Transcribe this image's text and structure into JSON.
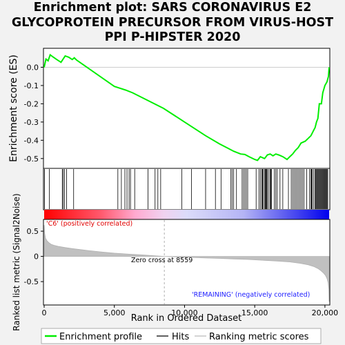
{
  "title_lines": [
    "Enrichment plot: SARS CORONAVIRUS E2",
    "GLYCOPROTEIN PRECURSOR FROM VIRUS-HOST",
    "PPI P-HIPSTER 2020"
  ],
  "chart_data": {
    "type": "line",
    "n_genes": 20300,
    "es_panel": {
      "ylabel": "Enrichment score (ES)",
      "ylim": [
        -0.55,
        0.1
      ],
      "yticks": [
        0.0,
        -0.1,
        -0.2,
        -0.3,
        -0.4,
        -0.5
      ],
      "ytick_labels": [
        "0.0",
        "-0.1",
        "-0.2",
        "-0.3",
        "-0.4",
        "-0.5"
      ],
      "series": [
        {
          "name": "Enrichment profile",
          "color": "#00ee00",
          "x": [
            0,
            130,
            280,
            430,
            600,
            900,
            1200,
            1350,
            1500,
            1750,
            2000,
            2150,
            2300,
            5000,
            5800,
            6300,
            8500,
            10000,
            11500,
            12500,
            13000,
            13500,
            14000,
            14300,
            14600,
            15000,
            15200,
            15400,
            15700,
            15900,
            16100,
            16300,
            16500,
            16700,
            17000,
            17300,
            17500,
            17700,
            17900,
            18100,
            18300,
            18600,
            18800,
            19000,
            19200,
            19300,
            19400,
            19500,
            19600,
            19750,
            19850,
            20000,
            20150,
            20250,
            20300
          ],
          "y": [
            0.0,
            0.045,
            0.035,
            0.068,
            0.058,
            0.042,
            0.027,
            0.045,
            0.062,
            0.055,
            0.042,
            0.052,
            0.04,
            -0.105,
            -0.125,
            -0.14,
            -0.225,
            -0.3,
            -0.375,
            -0.42,
            -0.44,
            -0.46,
            -0.475,
            -0.478,
            -0.49,
            -0.505,
            -0.51,
            -0.49,
            -0.5,
            -0.48,
            -0.475,
            -0.485,
            -0.475,
            -0.48,
            -0.49,
            -0.505,
            -0.49,
            -0.475,
            -0.455,
            -0.44,
            -0.415,
            -0.405,
            -0.39,
            -0.375,
            -0.345,
            -0.33,
            -0.3,
            -0.28,
            -0.2,
            -0.2,
            -0.14,
            -0.1,
            -0.08,
            -0.05,
            0.0
          ]
        }
      ]
    },
    "hits_panel": {
      "series_name": "Hits",
      "hit_positions": [
        30,
        370,
        1290,
        1360,
        1450,
        1600,
        2100,
        5250,
        5500,
        5750,
        5900,
        6050,
        6150,
        6450,
        7400,
        7900,
        8100,
        8300,
        9800,
        10500,
        11500,
        12200,
        12600,
        13300,
        13400,
        13500,
        13700,
        14100,
        14200,
        14300,
        14400,
        14500,
        15100,
        15300,
        15400,
        15500,
        15550,
        15600,
        15700,
        15750,
        15800,
        15850,
        15900,
        16000,
        16100,
        16150,
        16200,
        16400,
        16500,
        16600,
        16800,
        17000,
        17400,
        17600,
        17700,
        17800,
        17900,
        18000,
        18100,
        18200,
        18300,
        18400,
        18500,
        18700,
        18900,
        19000,
        19050,
        19100,
        19200,
        19300,
        19350,
        19400,
        19450,
        19500,
        19550,
        19600,
        19650,
        19700,
        19750,
        19800,
        19850,
        19900,
        19950,
        20000,
        20050,
        20100,
        20150,
        20200
      ]
    },
    "metric_panel": {
      "ylabel": "Ranked list metric (Signal2Noise)",
      "ylim": [
        -0.95,
        0.72
      ],
      "yticks": [
        0.5,
        0.0,
        -0.5
      ],
      "ytick_labels": [
        "0.5",
        "0",
        "-0.5"
      ],
      "series_name": "Ranking metric scores",
      "x": [
        0,
        40,
        100,
        200,
        350,
        500,
        700,
        1000,
        1500,
        2000,
        3000,
        4000,
        5000,
        6000,
        7000,
        8000,
        8559,
        9500,
        10500,
        11500,
        12500,
        13500,
        14500,
        15500,
        16500,
        17500,
        18200,
        18800,
        19200,
        19500,
        19700,
        19900,
        20050,
        20150,
        20230,
        20280,
        20300
      ],
      "y": [
        0.62,
        0.45,
        0.36,
        0.31,
        0.27,
        0.24,
        0.22,
        0.2,
        0.175,
        0.155,
        0.12,
        0.09,
        0.065,
        0.045,
        0.03,
        0.01,
        0.0,
        -0.01,
        -0.02,
        -0.03,
        -0.04,
        -0.05,
        -0.06,
        -0.075,
        -0.09,
        -0.11,
        -0.135,
        -0.165,
        -0.2,
        -0.24,
        -0.28,
        -0.33,
        -0.38,
        -0.44,
        -0.52,
        -0.65,
        -0.9
      ],
      "zero_cross_label": "Zero cross at 8559",
      "zero_cross_rank": 8559,
      "pos_label": "'C6' (positively correlated)",
      "neg_label": "'REMAINING' (negatively correlated)"
    },
    "xaxis": {
      "xlabel": "Rank in Ordered Dataset",
      "xlim": [
        0,
        20300
      ],
      "xticks": [
        0,
        5000,
        10000,
        15000,
        20000
      ],
      "xtick_labels": [
        "0",
        "5,000",
        "10,000",
        "15,000",
        "20,000"
      ]
    },
    "legend": {
      "placement": "bottom",
      "entries": [
        {
          "label": "Enrichment profile",
          "color": "#00ee00"
        },
        {
          "label": "Hits",
          "color": "#000000"
        },
        {
          "label": "Ranking metric scores",
          "color": "#bbbbbb"
        }
      ]
    }
  }
}
